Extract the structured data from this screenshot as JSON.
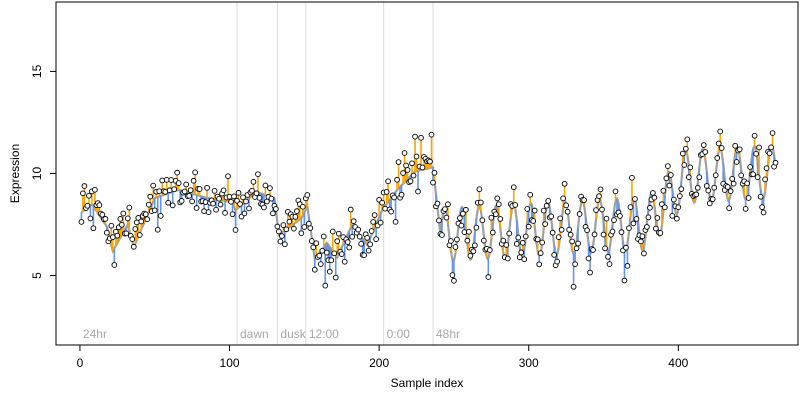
{
  "chart_data": {
    "type": "scatter",
    "title": "",
    "xlabel": "Sample index",
    "ylabel": "Expression",
    "xlim": [
      -16,
      480
    ],
    "ylim": [
      1.6,
      18.4
    ],
    "x_ticks": [
      0,
      100,
      200,
      300,
      400
    ],
    "x_tick_labels": [
      "0",
      "100",
      "200",
      "300",
      "400"
    ],
    "y_ticks": [
      5,
      10,
      15
    ],
    "y_tick_labels": [
      "5",
      "10",
      "15"
    ],
    "grid": false,
    "legend": "none",
    "colors": {
      "up": "#ffa500",
      "down": "#6495ed",
      "smooth": "#a0a0a0",
      "divider": "#dcdcdc",
      "phase_text": "#a8a8a8"
    },
    "phases": [
      {
        "label": "24hr",
        "x": 0
      },
      {
        "label": "dawn",
        "x": 105
      },
      {
        "label": "dusk",
        "x": 132
      },
      {
        "label": "12:00",
        "x": 151
      },
      {
        "label": "0:00",
        "x": 203
      },
      {
        "label": "48hr",
        "x": 236
      }
    ],
    "segments": [
      {
        "x0": 1,
        "x1": 8,
        "y0": 8.1,
        "y1": 8.5
      },
      {
        "x0": 8,
        "x1": 18,
        "y0": 8.5,
        "y1": 7.4
      },
      {
        "x0": 18,
        "x1": 22,
        "y0": 7.4,
        "y1": 6.2
      },
      {
        "x0": 22,
        "x1": 32,
        "y0": 6.2,
        "y1": 7.5
      },
      {
        "x0": 32,
        "x1": 36,
        "y0": 7.5,
        "y1": 6.4
      },
      {
        "x0": 36,
        "x1": 50,
        "y0": 6.4,
        "y1": 8.8
      },
      {
        "x0": 50,
        "x1": 66,
        "y0": 8.8,
        "y1": 9.2
      },
      {
        "x0": 66,
        "x1": 85,
        "y0": 9.2,
        "y1": 8.8
      },
      {
        "x0": 85,
        "x1": 102,
        "y0": 8.8,
        "y1": 8.6
      },
      {
        "x0": 102,
        "x1": 104,
        "y0": 8.6,
        "y1": 8.2
      },
      {
        "x0": 104,
        "x1": 118,
        "y0": 8.2,
        "y1": 9.1
      },
      {
        "x0": 118,
        "x1": 130,
        "y0": 9.1,
        "y1": 8.8
      },
      {
        "x0": 130,
        "x1": 133,
        "y0": 8.8,
        "y1": 7.0
      },
      {
        "x0": 133,
        "x1": 148,
        "y0": 7.0,
        "y1": 7.8
      },
      {
        "x0": 148,
        "x1": 152,
        "y0": 7.8,
        "y1": 8.4
      },
      {
        "x0": 152,
        "x1": 157,
        "y0": 8.4,
        "y1": 5.8
      },
      {
        "x0": 157,
        "x1": 165,
        "y0": 5.8,
        "y1": 6.6
      },
      {
        "x0": 165,
        "x1": 172,
        "y0": 6.6,
        "y1": 5.9
      },
      {
        "x0": 172,
        "x1": 182,
        "y0": 5.9,
        "y1": 7.5
      },
      {
        "x0": 182,
        "x1": 192,
        "y0": 7.5,
        "y1": 6.5
      },
      {
        "x0": 192,
        "x1": 202,
        "y0": 6.5,
        "y1": 8.2
      },
      {
        "x0": 202,
        "x1": 212,
        "y0": 8.2,
        "y1": 9.2
      },
      {
        "x0": 212,
        "x1": 224,
        "y0": 9.2,
        "y1": 10.1
      },
      {
        "x0": 224,
        "x1": 236,
        "y0": 10.1,
        "y1": 10.3
      },
      {
        "x0": 236,
        "x1": 241,
        "y0": 10.3,
        "y1": 7.0
      },
      {
        "x0": 241,
        "x1": 465,
        "y0": 7.0,
        "y1": 7.0,
        "amp": 1.3,
        "period": 11.5,
        "drift": 0.004
      }
    ],
    "oscillation_ramp": {
      "x_start": 380,
      "y_rise": 2.2
    },
    "points": {
      "x_start": 1,
      "x_end": 465,
      "noise_sd": 0.55,
      "seed": 20240517
    }
  }
}
